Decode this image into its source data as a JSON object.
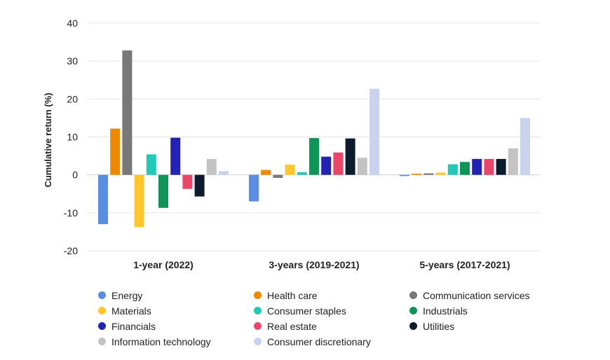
{
  "chart_data": {
    "type": "bar",
    "title": "",
    "xlabel": "",
    "ylabel": "Cumulative return (%)",
    "ylim": [
      -20,
      40
    ],
    "yticks": [
      40,
      30,
      20,
      10,
      0,
      -10,
      -20
    ],
    "grid": true,
    "legend_position": "bottom",
    "categories": [
      "1-year (2022)",
      "3-years (2019-2021)",
      "5-years (2017-2021)"
    ],
    "series": [
      {
        "name": "Energy",
        "color": "#5b8ee0",
        "values": [
          -13.0,
          -7.0,
          -0.3
        ]
      },
      {
        "name": "Health care",
        "color": "#ef8a00",
        "values": [
          12.2,
          1.3,
          0.3
        ]
      },
      {
        "name": "Communication services",
        "color": "#787878",
        "values": [
          32.8,
          -0.8,
          0.4
        ]
      },
      {
        "name": "Materials",
        "color": "#ffc72c",
        "values": [
          -13.8,
          2.7,
          0.6
        ]
      },
      {
        "name": "Consumer staples",
        "color": "#23c9b6",
        "values": [
          5.4,
          0.7,
          2.8
        ]
      },
      {
        "name": "Industrials",
        "color": "#0f9558",
        "values": [
          -8.7,
          9.7,
          3.4
        ]
      },
      {
        "name": "Financials",
        "color": "#2222b4",
        "values": [
          9.8,
          4.8,
          4.2
        ]
      },
      {
        "name": "Real estate",
        "color": "#e8476a",
        "values": [
          -3.7,
          5.9,
          4.2
        ]
      },
      {
        "name": "Utilities",
        "color": "#0d1b2e",
        "values": [
          -5.7,
          9.6,
          4.2
        ]
      },
      {
        "name": "Information technology",
        "color": "#c3c3c3",
        "values": [
          4.2,
          4.5,
          7.0
        ]
      },
      {
        "name": "Consumer discretionary",
        "color": "#c9d3ee",
        "values": [
          1.0,
          22.7,
          15.0
        ]
      }
    ]
  }
}
